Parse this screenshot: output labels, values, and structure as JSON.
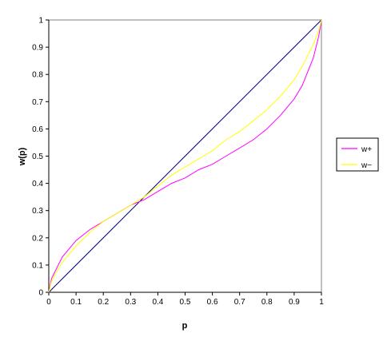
{
  "chart_data": {
    "type": "line",
    "title": "",
    "xlabel": "p",
    "ylabel": "w(p)",
    "xlim": [
      0,
      1
    ],
    "ylim": [
      0,
      1
    ],
    "xticks": [
      "0",
      "0.1",
      "0.2",
      "0.3",
      "0.4",
      "0.5",
      "0.6",
      "0.7",
      "0.8",
      "0.9",
      "1"
    ],
    "yticks": [
      "0",
      "0.1",
      "0.2",
      "0.3",
      "0.4",
      "0.5",
      "0.6",
      "0.7",
      "0.8",
      "0.9",
      "1"
    ],
    "grid": false,
    "legend": "right",
    "series": [
      {
        "name": "",
        "color": "#000080",
        "x": [
          0,
          1
        ],
        "y": [
          0,
          1
        ]
      },
      {
        "name": "w+",
        "color": "#ff00ff",
        "x": [
          0,
          0.01,
          0.02,
          0.05,
          0.1,
          0.15,
          0.2,
          0.25,
          0.3,
          0.35,
          0.4,
          0.45,
          0.5,
          0.55,
          0.6,
          0.65,
          0.7,
          0.75,
          0.8,
          0.85,
          0.9,
          0.93,
          0.95,
          0.97,
          0.99,
          1
        ],
        "y": [
          0,
          0.05,
          0.07,
          0.13,
          0.19,
          0.23,
          0.26,
          0.29,
          0.32,
          0.34,
          0.37,
          0.4,
          0.42,
          0.45,
          0.47,
          0.5,
          0.53,
          0.56,
          0.6,
          0.65,
          0.71,
          0.76,
          0.81,
          0.86,
          0.94,
          1
        ]
      },
      {
        "name": "w−",
        "color": "#ffff00",
        "x": [
          0,
          0.01,
          0.02,
          0.05,
          0.1,
          0.15,
          0.2,
          0.25,
          0.3,
          0.35,
          0.4,
          0.45,
          0.5,
          0.55,
          0.6,
          0.65,
          0.7,
          0.75,
          0.8,
          0.85,
          0.9,
          0.93,
          0.95,
          0.97,
          0.99,
          1
        ],
        "y": [
          0,
          0.04,
          0.06,
          0.11,
          0.17,
          0.22,
          0.26,
          0.29,
          0.32,
          0.35,
          0.39,
          0.43,
          0.46,
          0.49,
          0.52,
          0.56,
          0.59,
          0.63,
          0.67,
          0.72,
          0.78,
          0.83,
          0.87,
          0.91,
          0.96,
          1
        ]
      }
    ]
  }
}
